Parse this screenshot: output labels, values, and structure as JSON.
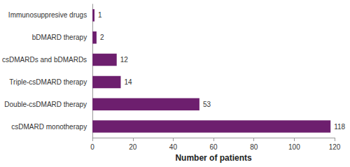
{
  "chart_data": {
    "type": "bar",
    "orientation": "horizontal",
    "categories": [
      "Immunosuppresive drugs",
      "bDMARD therapy",
      "csDMARDs and bDMARDs",
      "Triple-csDMARD therapy",
      "Double-csDMARD therapy",
      "csDMARD monotherapy"
    ],
    "values": [
      1,
      2,
      12,
      14,
      53,
      118
    ],
    "color": "#6d1f6e",
    "xlabel": "Number of patients",
    "xlim": [
      0,
      120
    ],
    "xticks": [
      0,
      20,
      40,
      60,
      80,
      100,
      120
    ],
    "grid": false,
    "data_labels": true
  }
}
